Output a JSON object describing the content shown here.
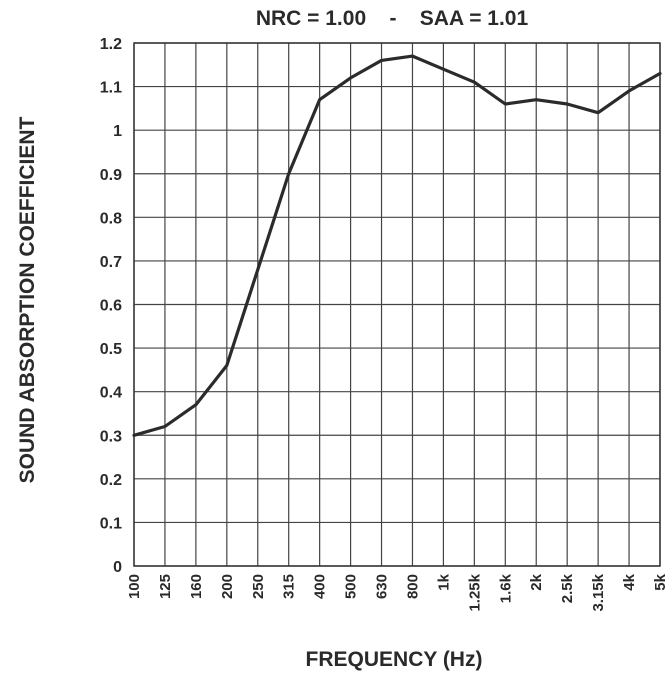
{
  "chart_data": {
    "type": "line",
    "title": "NRC = 1.00    -    SAA = 1.01",
    "xlabel": "FREQUENCY (Hz)",
    "ylabel": "SOUND ABSORPTION COEFFICIENT",
    "ylim": [
      0,
      1.2
    ],
    "yticks": [
      "0",
      "0.1",
      "0.2",
      "0.3",
      "0.4",
      "0.5",
      "0.6",
      "0.7",
      "0.8",
      "0.9",
      "1",
      "1.1",
      "1.2"
    ],
    "categories": [
      "100",
      "125",
      "160",
      "200",
      "250",
      "315",
      "400",
      "500",
      "630",
      "800",
      "1k",
      "1.25k",
      "1.6k",
      "2k",
      "2.5k",
      "3.15k",
      "4k",
      "5k"
    ],
    "series": [
      {
        "values": [
          0.3,
          0.32,
          0.37,
          0.46,
          0.68,
          0.9,
          1.07,
          1.12,
          1.16,
          1.17,
          1.14,
          1.11,
          1.06,
          1.07,
          1.06,
          1.04,
          1.09,
          1.13
        ]
      }
    ],
    "grid": true,
    "colors": {
      "line": "#2b2b2b",
      "grid": "#444444",
      "text": "#2a2a2a"
    }
  }
}
